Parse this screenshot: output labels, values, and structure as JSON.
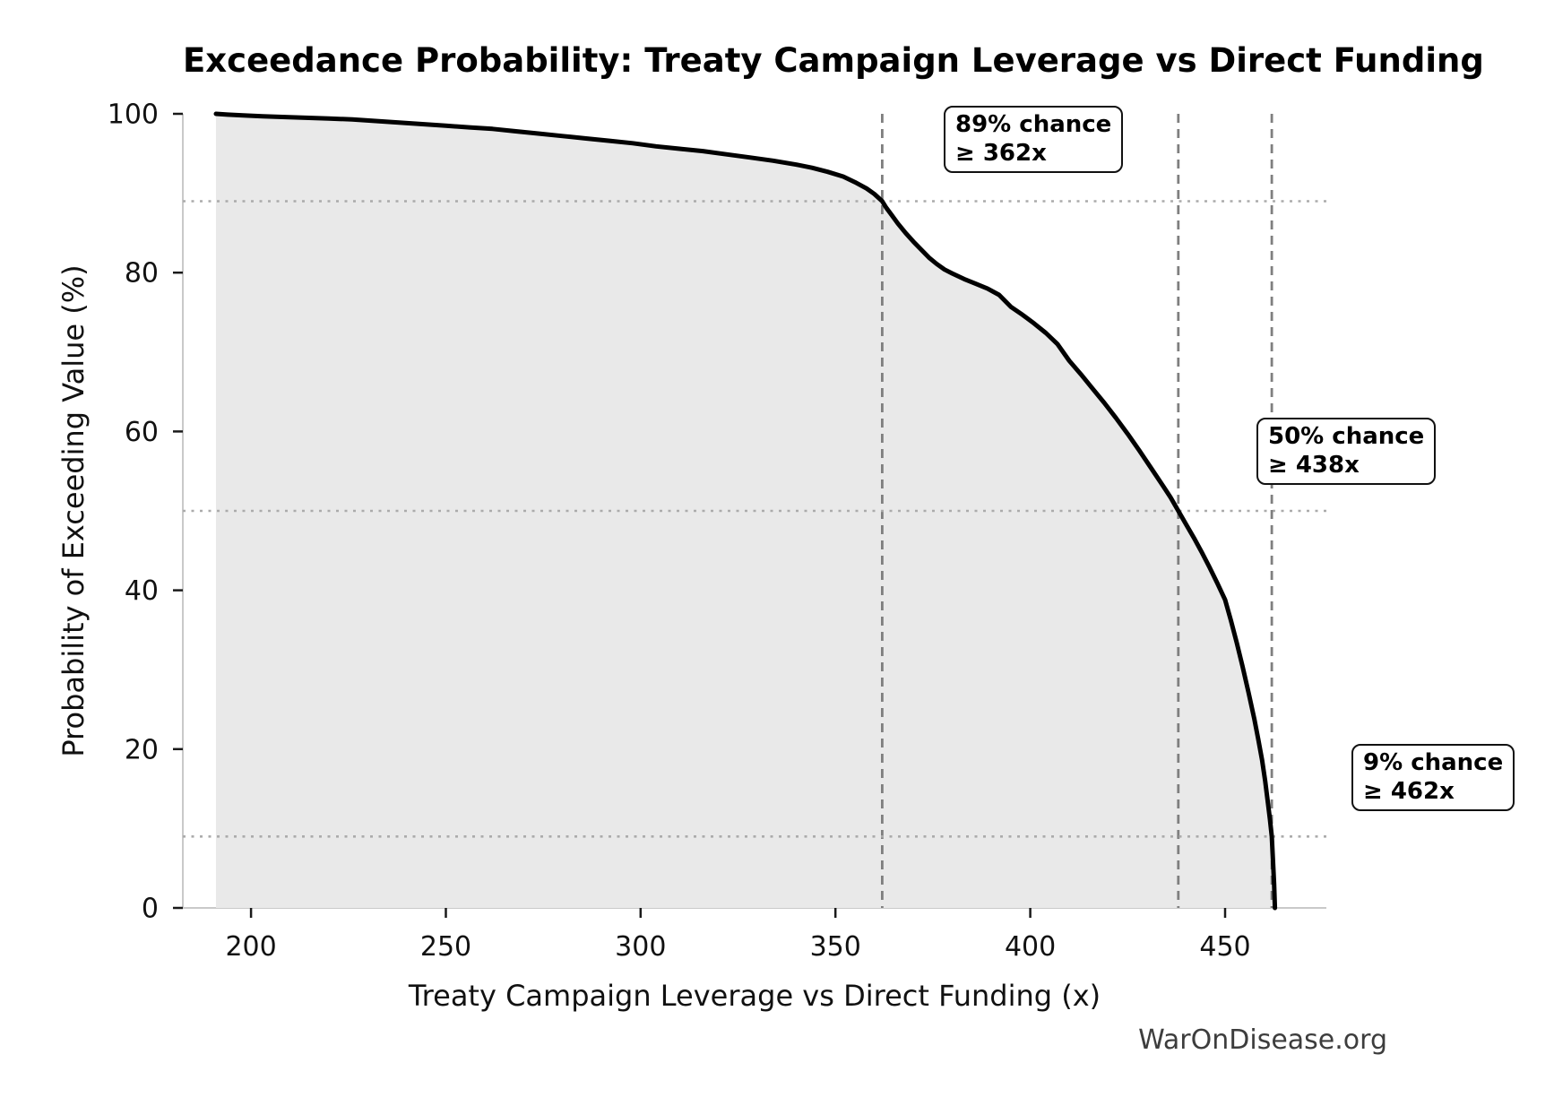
{
  "title": "Exceedance Probability: Treaty Campaign Leverage vs Direct Funding",
  "watermark": "WarOnDisease.org",
  "chart_data": {
    "type": "area",
    "title": "Exceedance Probability: Treaty Campaign Leverage vs Direct Funding",
    "xlabel": "Treaty Campaign Leverage vs Direct Funding (x)",
    "ylabel": "Probability of Exceeding Value (%)",
    "xlim": [
      182.5,
      476
    ],
    "ylim": [
      0,
      100
    ],
    "x_ticks": [
      200,
      250,
      300,
      350,
      400,
      450
    ],
    "y_ticks": [
      0,
      20,
      40,
      60,
      80,
      100
    ],
    "grid": false,
    "legend": "none",
    "curve_color": "#000000",
    "fill_color": "#e9e9e9",
    "spine_color": "#c9c9c9",
    "vline_color": "#7f7f7f",
    "hline_color": "#ababab",
    "curve": [
      [
        191,
        100
      ],
      [
        194,
        99.9
      ],
      [
        198,
        99.8
      ],
      [
        203,
        99.7
      ],
      [
        208,
        99.6
      ],
      [
        214,
        99.5
      ],
      [
        220,
        99.4
      ],
      [
        226,
        99.3
      ],
      [
        232,
        99.1
      ],
      [
        238,
        98.9
      ],
      [
        244,
        98.7
      ],
      [
        250,
        98.5
      ],
      [
        256,
        98.3
      ],
      [
        262,
        98.1
      ],
      [
        268,
        97.8
      ],
      [
        274,
        97.5
      ],
      [
        280,
        97.2
      ],
      [
        286,
        96.9
      ],
      [
        292,
        96.6
      ],
      [
        298,
        96.3
      ],
      [
        304,
        95.9
      ],
      [
        310,
        95.6
      ],
      [
        316,
        95.3
      ],
      [
        322,
        94.9
      ],
      [
        328,
        94.5
      ],
      [
        334,
        94.1
      ],
      [
        340,
        93.6
      ],
      [
        344,
        93.2
      ],
      [
        348,
        92.7
      ],
      [
        352,
        92.1
      ],
      [
        355,
        91.4
      ],
      [
        358,
        90.6
      ],
      [
        360,
        89.9
      ],
      [
        362,
        89.0
      ],
      [
        363,
        88.2
      ],
      [
        364.5,
        87.2
      ],
      [
        366,
        86.2
      ],
      [
        368,
        85.0
      ],
      [
        370,
        83.9
      ],
      [
        372,
        82.9
      ],
      [
        374,
        81.9
      ],
      [
        376,
        81.1
      ],
      [
        378,
        80.4
      ],
      [
        380,
        79.9
      ],
      [
        383,
        79.2
      ],
      [
        386,
        78.6
      ],
      [
        389,
        78.0
      ],
      [
        392,
        77.2
      ],
      [
        395,
        75.7
      ],
      [
        398,
        74.7
      ],
      [
        401,
        73.6
      ],
      [
        404,
        72.4
      ],
      [
        407,
        71.0
      ],
      [
        410,
        68.9
      ],
      [
        413,
        67.2
      ],
      [
        416,
        65.4
      ],
      [
        419,
        63.6
      ],
      [
        422,
        61.7
      ],
      [
        425,
        59.7
      ],
      [
        428,
        57.6
      ],
      [
        431,
        55.4
      ],
      [
        434,
        53.2
      ],
      [
        436,
        51.7
      ],
      [
        438,
        50.0
      ],
      [
        440,
        48.3
      ],
      [
        442,
        46.6
      ],
      [
        444,
        44.8
      ],
      [
        446,
        42.9
      ],
      [
        448,
        40.9
      ],
      [
        450,
        38.8
      ],
      [
        451.5,
        36.2
      ],
      [
        453,
        33.4
      ],
      [
        454.5,
        30.4
      ],
      [
        456,
        27.2
      ],
      [
        457.5,
        23.8
      ],
      [
        458.5,
        21.3
      ],
      [
        459.5,
        18.6
      ],
      [
        460.3,
        16.0
      ],
      [
        461,
        13.2
      ],
      [
        461.5,
        11.2
      ],
      [
        462,
        9.0
      ],
      [
        462.3,
        6.0
      ],
      [
        462.6,
        3.0
      ],
      [
        462.8,
        0.0
      ]
    ],
    "annotations": [
      {
        "probability_pct": 89,
        "threshold_x": 362,
        "line1": "89% chance",
        "line2": "≥ 362x"
      },
      {
        "probability_pct": 50,
        "threshold_x": 438,
        "line1": "50% chance",
        "line2": "≥ 438x"
      },
      {
        "probability_pct": 9,
        "threshold_x": 462,
        "line1": "9% chance",
        "line2": "≥ 462x"
      }
    ]
  }
}
